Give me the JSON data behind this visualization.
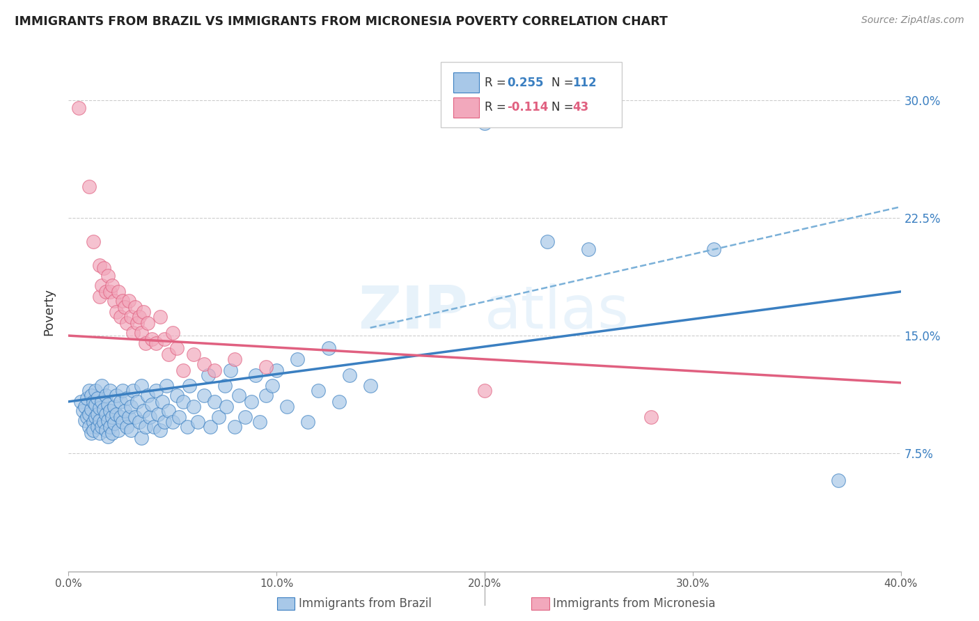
{
  "title": "IMMIGRANTS FROM BRAZIL VS IMMIGRANTS FROM MICRONESIA POVERTY CORRELATION CHART",
  "source": "Source: ZipAtlas.com",
  "ylabel": "Poverty",
  "ytick_labels": [
    "7.5%",
    "15.0%",
    "22.5%",
    "30.0%"
  ],
  "ytick_values": [
    0.075,
    0.15,
    0.225,
    0.3
  ],
  "xlim": [
    0.0,
    0.4
  ],
  "ylim": [
    0.0,
    0.33
  ],
  "watermark_zip": "ZIP",
  "watermark_atlas": "atlas",
  "brazil_color": "#a8c8e8",
  "micronesia_color": "#f2a8bc",
  "brazil_line_color": "#3a7fc1",
  "micronesia_line_color": "#e06080",
  "dashed_line_color": "#7ab0d8",
  "brazil_line": [
    0.0,
    0.108,
    0.4,
    0.178
  ],
  "micronesia_line": [
    0.0,
    0.15,
    0.4,
    0.12
  ],
  "dashed_line": [
    0.145,
    0.155,
    0.4,
    0.232
  ],
  "brazil_scatter": [
    [
      0.006,
      0.108
    ],
    [
      0.007,
      0.102
    ],
    [
      0.008,
      0.096
    ],
    [
      0.008,
      0.105
    ],
    [
      0.009,
      0.098
    ],
    [
      0.009,
      0.11
    ],
    [
      0.01,
      0.092
    ],
    [
      0.01,
      0.1
    ],
    [
      0.01,
      0.115
    ],
    [
      0.011,
      0.088
    ],
    [
      0.011,
      0.103
    ],
    [
      0.011,
      0.112
    ],
    [
      0.012,
      0.095
    ],
    [
      0.012,
      0.108
    ],
    [
      0.012,
      0.09
    ],
    [
      0.013,
      0.098
    ],
    [
      0.013,
      0.106
    ],
    [
      0.013,
      0.115
    ],
    [
      0.014,
      0.092
    ],
    [
      0.014,
      0.1
    ],
    [
      0.014,
      0.11
    ],
    [
      0.015,
      0.088
    ],
    [
      0.015,
      0.096
    ],
    [
      0.015,
      0.104
    ],
    [
      0.016,
      0.092
    ],
    [
      0.016,
      0.108
    ],
    [
      0.016,
      0.118
    ],
    [
      0.017,
      0.095
    ],
    [
      0.017,
      0.103
    ],
    [
      0.018,
      0.09
    ],
    [
      0.018,
      0.1
    ],
    [
      0.018,
      0.112
    ],
    [
      0.019,
      0.086
    ],
    [
      0.019,
      0.096
    ],
    [
      0.019,
      0.106
    ],
    [
      0.02,
      0.092
    ],
    [
      0.02,
      0.102
    ],
    [
      0.02,
      0.115
    ],
    [
      0.021,
      0.088
    ],
    [
      0.021,
      0.098
    ],
    [
      0.022,
      0.105
    ],
    [
      0.022,
      0.094
    ],
    [
      0.023,
      0.112
    ],
    [
      0.023,
      0.1
    ],
    [
      0.024,
      0.09
    ],
    [
      0.025,
      0.098
    ],
    [
      0.025,
      0.108
    ],
    [
      0.026,
      0.095
    ],
    [
      0.026,
      0.115
    ],
    [
      0.027,
      0.102
    ],
    [
      0.028,
      0.092
    ],
    [
      0.028,
      0.11
    ],
    [
      0.029,
      0.098
    ],
    [
      0.03,
      0.105
    ],
    [
      0.03,
      0.09
    ],
    [
      0.031,
      0.115
    ],
    [
      0.032,
      0.098
    ],
    [
      0.033,
      0.108
    ],
    [
      0.034,
      0.095
    ],
    [
      0.035,
      0.118
    ],
    [
      0.035,
      0.085
    ],
    [
      0.036,
      0.102
    ],
    [
      0.037,
      0.092
    ],
    [
      0.038,
      0.112
    ],
    [
      0.039,
      0.098
    ],
    [
      0.04,
      0.106
    ],
    [
      0.041,
      0.092
    ],
    [
      0.042,
      0.115
    ],
    [
      0.043,
      0.1
    ],
    [
      0.044,
      0.09
    ],
    [
      0.045,
      0.108
    ],
    [
      0.046,
      0.095
    ],
    [
      0.047,
      0.118
    ],
    [
      0.048,
      0.102
    ],
    [
      0.05,
      0.095
    ],
    [
      0.052,
      0.112
    ],
    [
      0.053,
      0.098
    ],
    [
      0.055,
      0.108
    ],
    [
      0.057,
      0.092
    ],
    [
      0.058,
      0.118
    ],
    [
      0.06,
      0.105
    ],
    [
      0.062,
      0.095
    ],
    [
      0.065,
      0.112
    ],
    [
      0.067,
      0.125
    ],
    [
      0.068,
      0.092
    ],
    [
      0.07,
      0.108
    ],
    [
      0.072,
      0.098
    ],
    [
      0.075,
      0.118
    ],
    [
      0.076,
      0.105
    ],
    [
      0.078,
      0.128
    ],
    [
      0.08,
      0.092
    ],
    [
      0.082,
      0.112
    ],
    [
      0.085,
      0.098
    ],
    [
      0.088,
      0.108
    ],
    [
      0.09,
      0.125
    ],
    [
      0.092,
      0.095
    ],
    [
      0.095,
      0.112
    ],
    [
      0.098,
      0.118
    ],
    [
      0.1,
      0.128
    ],
    [
      0.105,
      0.105
    ],
    [
      0.11,
      0.135
    ],
    [
      0.115,
      0.095
    ],
    [
      0.12,
      0.115
    ],
    [
      0.125,
      0.142
    ],
    [
      0.13,
      0.108
    ],
    [
      0.135,
      0.125
    ],
    [
      0.145,
      0.118
    ],
    [
      0.2,
      0.285
    ],
    [
      0.23,
      0.21
    ],
    [
      0.25,
      0.205
    ],
    [
      0.31,
      0.205
    ],
    [
      0.37,
      0.058
    ]
  ],
  "micronesia_scatter": [
    [
      0.005,
      0.295
    ],
    [
      0.01,
      0.245
    ],
    [
      0.012,
      0.21
    ],
    [
      0.015,
      0.195
    ],
    [
      0.015,
      0.175
    ],
    [
      0.016,
      0.182
    ],
    [
      0.017,
      0.193
    ],
    [
      0.018,
      0.178
    ],
    [
      0.019,
      0.188
    ],
    [
      0.02,
      0.178
    ],
    [
      0.021,
      0.182
    ],
    [
      0.022,
      0.172
    ],
    [
      0.023,
      0.165
    ],
    [
      0.024,
      0.178
    ],
    [
      0.025,
      0.162
    ],
    [
      0.026,
      0.172
    ],
    [
      0.027,
      0.168
    ],
    [
      0.028,
      0.158
    ],
    [
      0.029,
      0.172
    ],
    [
      0.03,
      0.162
    ],
    [
      0.031,
      0.152
    ],
    [
      0.032,
      0.168
    ],
    [
      0.033,
      0.158
    ],
    [
      0.034,
      0.162
    ],
    [
      0.035,
      0.152
    ],
    [
      0.036,
      0.165
    ],
    [
      0.037,
      0.145
    ],
    [
      0.038,
      0.158
    ],
    [
      0.04,
      0.148
    ],
    [
      0.042,
      0.145
    ],
    [
      0.044,
      0.162
    ],
    [
      0.046,
      0.148
    ],
    [
      0.048,
      0.138
    ],
    [
      0.05,
      0.152
    ],
    [
      0.052,
      0.142
    ],
    [
      0.055,
      0.128
    ],
    [
      0.06,
      0.138
    ],
    [
      0.065,
      0.132
    ],
    [
      0.07,
      0.128
    ],
    [
      0.08,
      0.135
    ],
    [
      0.095,
      0.13
    ],
    [
      0.2,
      0.115
    ],
    [
      0.28,
      0.098
    ]
  ]
}
